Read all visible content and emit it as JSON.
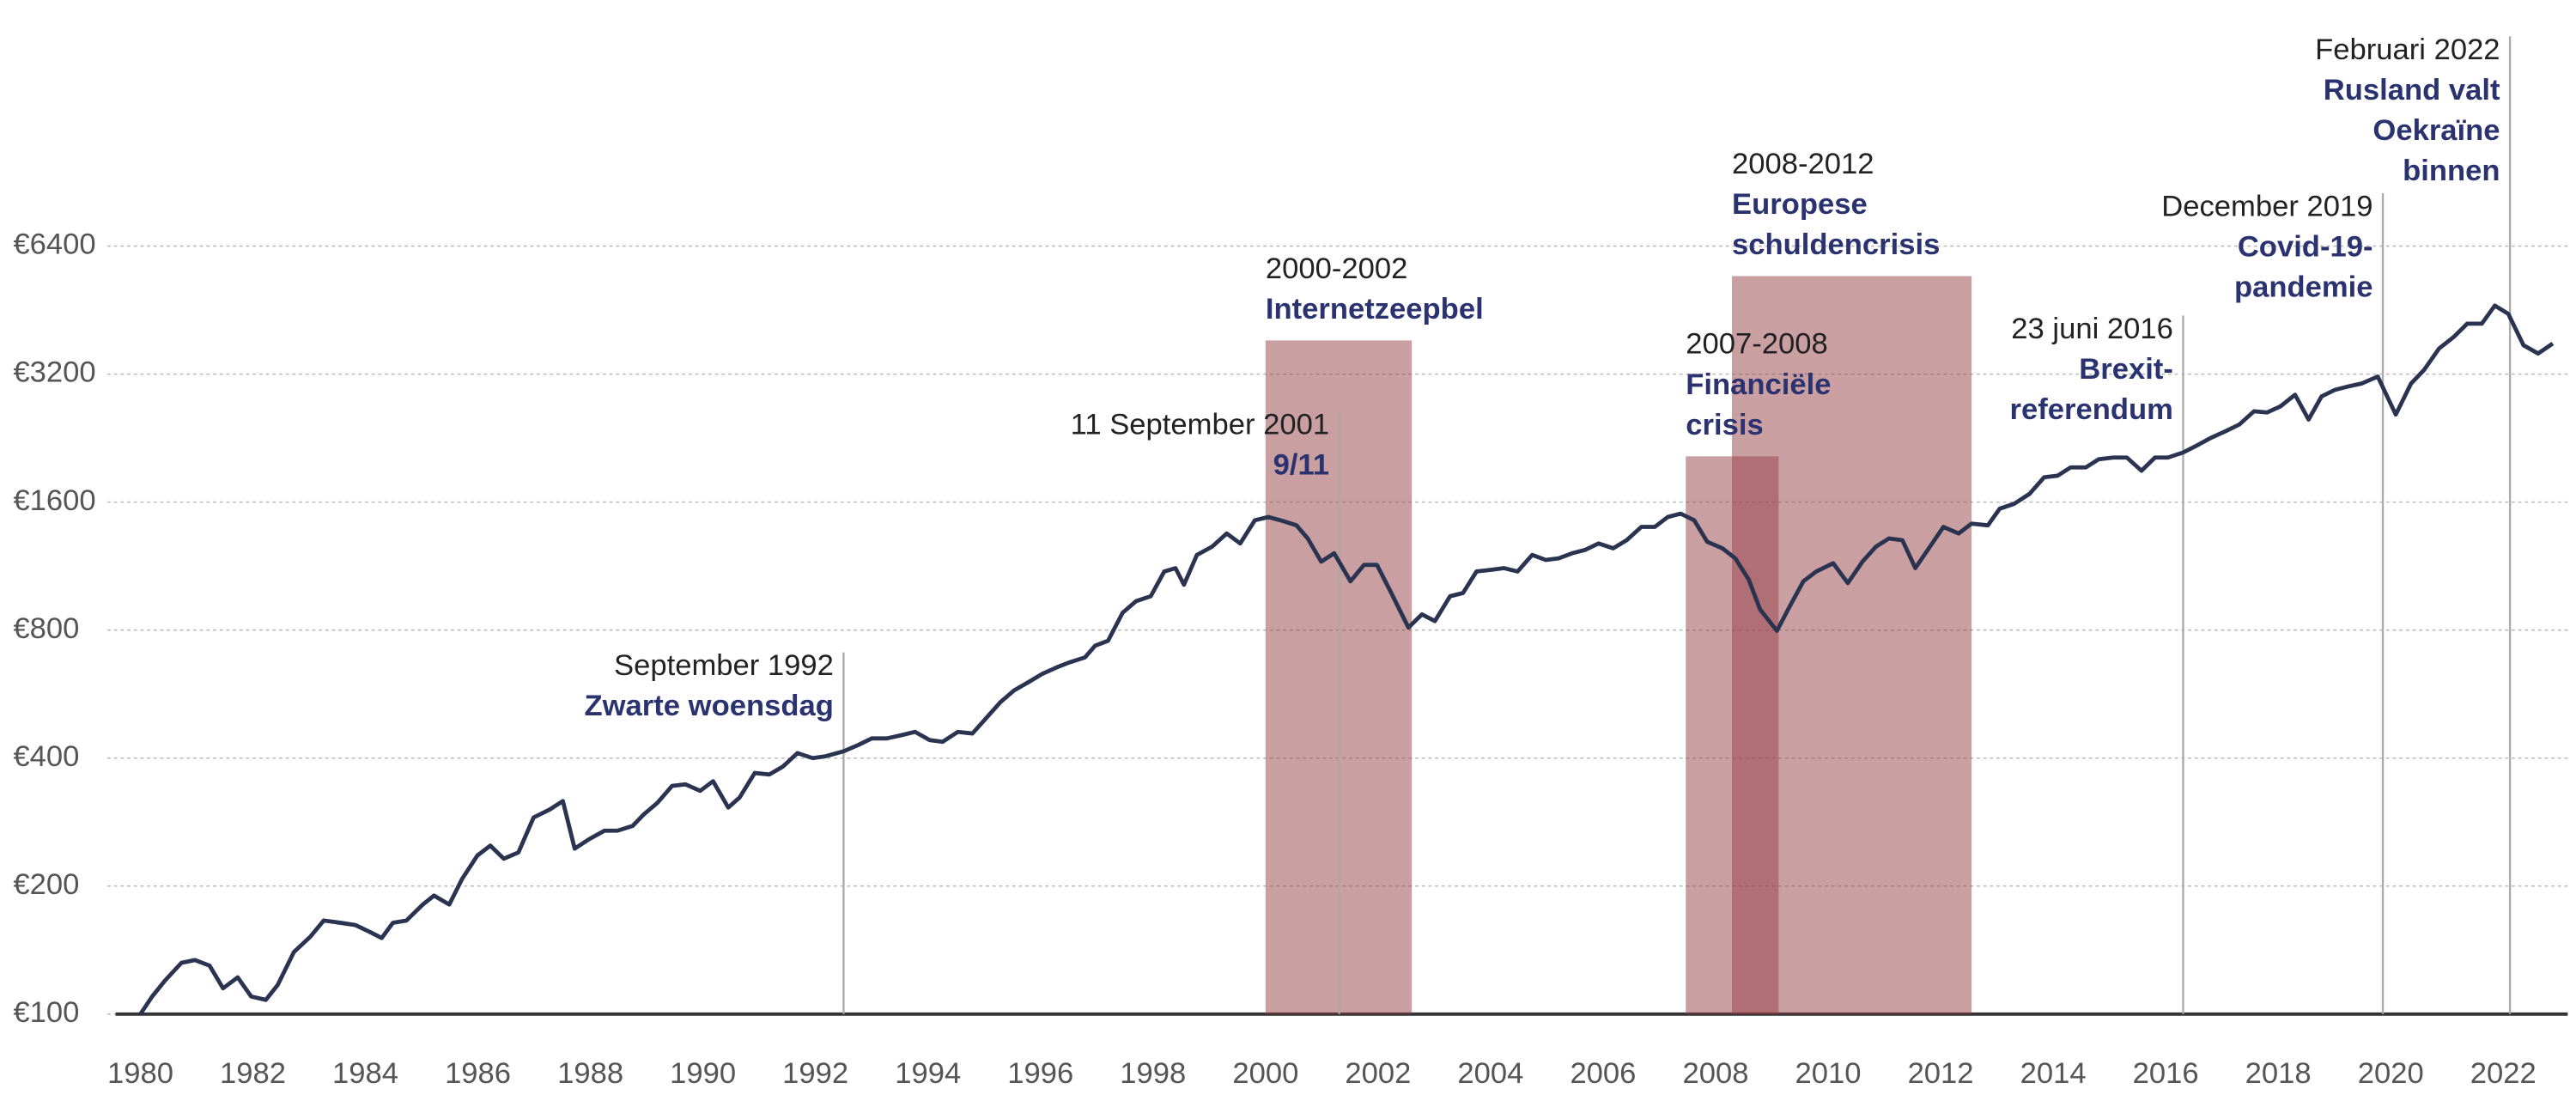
{
  "chart_data": {
    "type": "line",
    "yscale": "log",
    "grid": true,
    "xlim": [
      1980,
      2023
    ],
    "ylim": [
      100,
      6400
    ],
    "xticks": [
      1980,
      1982,
      1984,
      1986,
      1988,
      1990,
      1992,
      1994,
      1996,
      1998,
      2000,
      2002,
      2004,
      2006,
      2008,
      2010,
      2012,
      2014,
      2016,
      2018,
      2020,
      2022
    ],
    "yticks": [
      {
        "value": 100,
        "label": "€100"
      },
      {
        "value": 200,
        "label": "€200"
      },
      {
        "value": 400,
        "label": "€400"
      },
      {
        "value": 800,
        "label": "€800"
      },
      {
        "value": 1600,
        "label": "€1600"
      },
      {
        "value": 3200,
        "label": "€3200"
      },
      {
        "value": 6400,
        "label": "€6400"
      }
    ],
    "series": [
      {
        "color": "#2a3350",
        "x": [
          1980.0,
          1980.21,
          1980.44,
          1980.73,
          1980.97,
          1981.23,
          1981.47,
          1981.73,
          1981.97,
          1982.23,
          1982.44,
          1982.73,
          1983.02,
          1983.26,
          1983.55,
          1983.82,
          1984.08,
          1984.29,
          1984.49,
          1984.73,
          1985.02,
          1985.22,
          1985.49,
          1985.72,
          1985.99,
          1986.22,
          1986.46,
          1986.72,
          1986.99,
          1987.28,
          1987.51,
          1987.72,
          1987.98,
          1988.25,
          1988.48,
          1988.75,
          1988.95,
          1989.19,
          1989.45,
          1989.69,
          1989.95,
          1990.18,
          1990.45,
          1990.65,
          1990.92,
          1991.18,
          1991.42,
          1991.68,
          1991.95,
          1992.18,
          1992.5,
          1992.77,
          1993.0,
          1993.27,
          1993.53,
          1993.77,
          1994.03,
          1994.26,
          1994.53,
          1994.79,
          1995.03,
          1995.29,
          1995.53,
          1995.79,
          1996.03,
          1996.29,
          1996.52,
          1996.79,
          1996.97,
          1997.2,
          1997.46,
          1997.7,
          1997.96,
          1998.2,
          1998.4,
          1998.55,
          1998.78,
          1999.05,
          1999.31,
          1999.55,
          1999.81,
          2000.05,
          2000.31,
          2000.55,
          2000.75,
          2000.99,
          2001.22,
          2001.51,
          2001.75,
          2001.98,
          2002.22,
          2002.54,
          2002.78,
          2003.01,
          2003.28,
          2003.51,
          2003.75,
          2004.01,
          2004.24,
          2004.48,
          2004.74,
          2004.98,
          2005.21,
          2005.45,
          2005.68,
          2005.92,
          2006.18,
          2006.42,
          2006.68,
          2006.92,
          2007.15,
          2007.38,
          2007.62,
          2007.85,
          2008.12,
          2008.35,
          2008.59,
          2008.79,
          2009.09,
          2009.32,
          2009.56,
          2009.79,
          2010.09,
          2010.35,
          2010.61,
          2010.85,
          2011.08,
          2011.32,
          2011.55,
          2011.79,
          2012.05,
          2012.32,
          2012.55,
          2012.84,
          2013.05,
          2013.31,
          2013.58,
          2013.84,
          2014.08,
          2014.31,
          2014.58,
          2014.81,
          2015.07,
          2015.31,
          2015.57,
          2015.81,
          2016.04,
          2016.31,
          2016.54,
          2016.81,
          2017.07,
          2017.31,
          2017.57,
          2017.8,
          2018.04,
          2018.3,
          2018.54,
          2018.77,
          2019.01,
          2019.24,
          2019.48,
          2019.77,
          2020.09,
          2020.36,
          2020.59,
          2020.86,
          2021.12,
          2021.36,
          2021.62,
          2021.85,
          2022.09,
          2022.36,
          2022.62,
          2022.88
        ],
        "values": [
          100,
          110,
          120,
          132,
          134,
          130,
          115,
          122,
          110,
          108,
          117,
          140,
          152,
          166,
          164,
          162,
          156,
          151,
          164,
          166,
          181,
          190,
          181,
          208,
          236,
          249,
          232,
          240,
          290,
          303,
          317,
          245,
          258,
          270,
          270,
          277,
          295,
          314,
          344,
          347,
          335,
          353,
          306,
          323,
          369,
          366,
          382,
          411,
          400,
          404,
          415,
          430,
          445,
          445,
          453,
          461,
          441,
          437,
          461,
          457,
          496,
          542,
          577,
          604,
          631,
          654,
          672,
          690,
          735,
          755,
          879,
          936,
          961,
          1099,
          1119,
          1023,
          1202,
          1257,
          1350,
          1279,
          1450,
          1476,
          1444,
          1411,
          1314,
          1159,
          1213,
          1042,
          1139,
          1139,
          987,
          811,
          871,
          840,
          961,
          978,
          1099,
          1109,
          1119,
          1099,
          1202,
          1170,
          1180,
          1213,
          1235,
          1279,
          1246,
          1302,
          1399,
          1399,
          1476,
          1503,
          1450,
          1291,
          1246,
          1180,
          1051,
          895,
          797,
          911,
          1042,
          1099,
          1149,
          1032,
          1159,
          1257,
          1314,
          1302,
          1119,
          1246,
          1399,
          1350,
          1424,
          1411,
          1544,
          1586,
          1673,
          1830,
          1846,
          1931,
          1931,
          2018,
          2037,
          2037,
          1896,
          2037,
          2037,
          2093,
          2169,
          2268,
          2351,
          2436,
          2617,
          2600,
          2687,
          2862,
          2502,
          2835,
          2939,
          2992,
          3040,
          3158,
          2570,
          3040,
          3270,
          3676,
          3913,
          4205,
          4205,
          4637,
          4435,
          3742,
          3578,
          3776
        ]
      }
    ],
    "periods": [
      {
        "start": 2000.0,
        "end": 2002.6,
        "top": 3840,
        "color": "#963f45",
        "date": "2000-2002",
        "label": [
          "Internetzeepbel"
        ]
      },
      {
        "start": 2007.47,
        "end": 2009.12,
        "top": 2050,
        "color": "#963f45",
        "date": "2007-2008",
        "label": [
          "Financiële",
          "crisis"
        ]
      },
      {
        "start": 2008.29,
        "end": 2012.55,
        "top": 5440,
        "color": "#963f45",
        "date": "2008-2012",
        "label": [
          "Europese",
          "schuldencrisis"
        ]
      }
    ],
    "events": [
      {
        "x": 1992.5,
        "y": 709,
        "date": "September 1992",
        "label": [
          "Zwarte woensdag"
        ]
      },
      {
        "x": 2001.31,
        "y": 2617,
        "date": "11 September 2001",
        "label": [
          "9/11"
        ]
      },
      {
        "x": 2016.31,
        "y": 4396,
        "date": "23 juni 2016",
        "label": [
          "Brexit-",
          "referendum"
        ]
      },
      {
        "x": 2019.86,
        "y": 8520,
        "date": "December 2019",
        "label": [
          "Covid-19-",
          "pandemie"
        ]
      },
      {
        "x": 2022.12,
        "y": 19930,
        "date": "Februari 2022",
        "label": [
          "Rusland valt",
          "Oekraïne",
          "binnen"
        ]
      }
    ]
  }
}
